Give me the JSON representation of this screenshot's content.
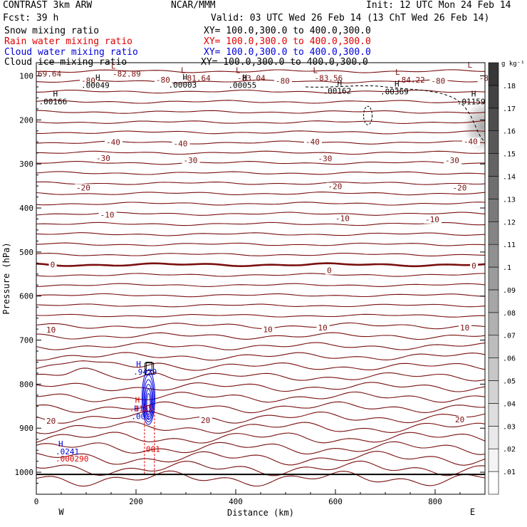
{
  "header": {
    "model": "CONTRAST  3km ARW",
    "center": "NCAR/MMM",
    "init": "Init: 12 UTC Mon 24 Feb 14",
    "fcst": "Fcst:   39 h",
    "valid": "Valid: 03 UTC Wed 26 Feb 14 (13 ChT Wed 26 Feb 14)",
    "fields": [
      {
        "label": "Snow mixing ratio",
        "xy": "XY= 100.0,300.0 to 400.0,300.0",
        "color": "#000000"
      },
      {
        "label": "Rain water mixing ratio",
        "xy": "XY= 100.0,300.0 to 400.0,300.0",
        "color": "#e00000"
      },
      {
        "label": "Cloud water mixing ratio",
        "xy": "XY= 100.0,300.0 to 400.0,300.0",
        "color": "#0000dd"
      },
      {
        "label": "Cloud ice mixing ratio",
        "xy": "XY= 100.0,300.0 to 400.0,300.0",
        "color": "#000000"
      }
    ]
  },
  "chart_data": {
    "type": "contour",
    "title": "",
    "xlabel": "Distance (km)",
    "ylabel": "Pressure (hPa)",
    "xlim": [
      0,
      900
    ],
    "ylim": [
      1050,
      70
    ],
    "xticks": [
      0,
      200,
      400,
      600,
      800
    ],
    "yticks": [
      100,
      200,
      300,
      400,
      500,
      600,
      700,
      800,
      900,
      1000
    ],
    "x_end_labels": {
      "left": "W",
      "right": "E"
    },
    "surface_pressure": 1005,
    "colorbar": {
      "units": "g kg⁻¹",
      "ticks": [
        ".01",
        ".02",
        ".03",
        ".04",
        ".05",
        ".06",
        ".07",
        ".08",
        ".09",
        ".1",
        ".11",
        ".12",
        ".13",
        ".14",
        ".15",
        ".16",
        ".17",
        ".18"
      ]
    },
    "temperature_contours": {
      "color": "#7a1010",
      "interval": 5,
      "labels": [
        {
          "x": 20,
          "p": 890,
          "text": "20"
        },
        {
          "x": 330,
          "p": 888,
          "text": "20"
        },
        {
          "x": 840,
          "p": 887,
          "text": "20"
        },
        {
          "x": 20,
          "p": 683,
          "text": "10"
        },
        {
          "x": 455,
          "p": 682,
          "text": "10"
        },
        {
          "x": 565,
          "p": 678,
          "text": "10"
        },
        {
          "x": 850,
          "p": 678,
          "text": "10"
        },
        {
          "x": 28,
          "p": 535,
          "text": "0"
        },
        {
          "x": 583,
          "p": 548,
          "text": "0"
        },
        {
          "x": 873,
          "p": 537,
          "text": "0"
        },
        {
          "x": 128,
          "p": 422,
          "text": "-10"
        },
        {
          "x": 600,
          "p": 430,
          "text": "-10"
        },
        {
          "x": 780,
          "p": 432,
          "text": "-10"
        },
        {
          "x": 80,
          "p": 360,
          "text": "-20"
        },
        {
          "x": 585,
          "p": 357,
          "text": "-20"
        },
        {
          "x": 835,
          "p": 360,
          "text": "-20"
        },
        {
          "x": 120,
          "p": 293,
          "text": "-30"
        },
        {
          "x": 295,
          "p": 298,
          "text": "-30"
        },
        {
          "x": 565,
          "p": 294,
          "text": "-30"
        },
        {
          "x": 820,
          "p": 298,
          "text": "-30"
        },
        {
          "x": 140,
          "p": 257,
          "text": "-40"
        },
        {
          "x": 275,
          "p": 260,
          "text": "-40"
        },
        {
          "x": 540,
          "p": 256,
          "text": "-40"
        },
        {
          "x": 857,
          "p": 255,
          "text": "-40"
        },
        {
          "x": 90,
          "p": 117,
          "text": "-80"
        },
        {
          "x": 240,
          "p": 115,
          "text": "-80"
        },
        {
          "x": 480,
          "p": 118,
          "text": "-80"
        },
        {
          "x": 792,
          "p": 118,
          "text": "-80"
        },
        {
          "x": 888,
          "p": 111,
          "text": "-8"
        }
      ],
      "extrema": [
        {
          "kind": "L",
          "x": 150,
          "p": 98,
          "text": "-82.89"
        },
        {
          "kind": "L",
          "x": 290,
          "p": 108,
          "text": "-81.64"
        },
        {
          "kind": "L",
          "x": 400,
          "p": 108,
          "text": "-83.04"
        },
        {
          "kind": "L",
          "x": 555,
          "p": 108,
          "text": "-83.56"
        },
        {
          "kind": "L",
          "x": 720,
          "p": 112,
          "text": "-84.22"
        },
        {
          "kind": "L",
          "x": 865,
          "p": 96,
          "text": ""
        },
        {
          "kind": "value",
          "x": 0,
          "p": 98,
          "text": "69.64"
        }
      ]
    },
    "snow_mixing_ratio": {
      "color": "#000000",
      "maxima": [
        {
          "x": 90,
          "p": 126,
          "text": ".00049"
        },
        {
          "x": 265,
          "p": 125,
          "text": ".00003"
        },
        {
          "x": 385,
          "p": 126,
          "text": ".00055"
        },
        {
          "x": 575,
          "p": 139,
          "text": ".00162"
        },
        {
          "x": 690,
          "p": 140,
          "text": ".00369"
        },
        {
          "x": 5,
          "p": 163,
          "text": ".00166"
        },
        {
          "x": 844,
          "p": 163,
          "text": ".01159"
        }
      ]
    },
    "rain_water_mixing_ratio": {
      "color": "#e00000",
      "maxima": [
        {
          "x": 198,
          "p": 860,
          "text": ".1125"
        },
        {
          "x": 222,
          "p": 952,
          "text": ".001"
        },
        {
          "x": 50,
          "p": 974,
          "text": ".000290"
        }
      ]
    },
    "cloud_water_mixing_ratio": {
      "color": "#0000dd",
      "maxima": [
        {
          "x": 206,
          "p": 777,
          "text": ".9429"
        },
        {
          "x": 202,
          "p": 878,
          "text": ".001"
        },
        {
          "x": 50,
          "p": 958,
          "text": ".0241"
        }
      ]
    }
  }
}
